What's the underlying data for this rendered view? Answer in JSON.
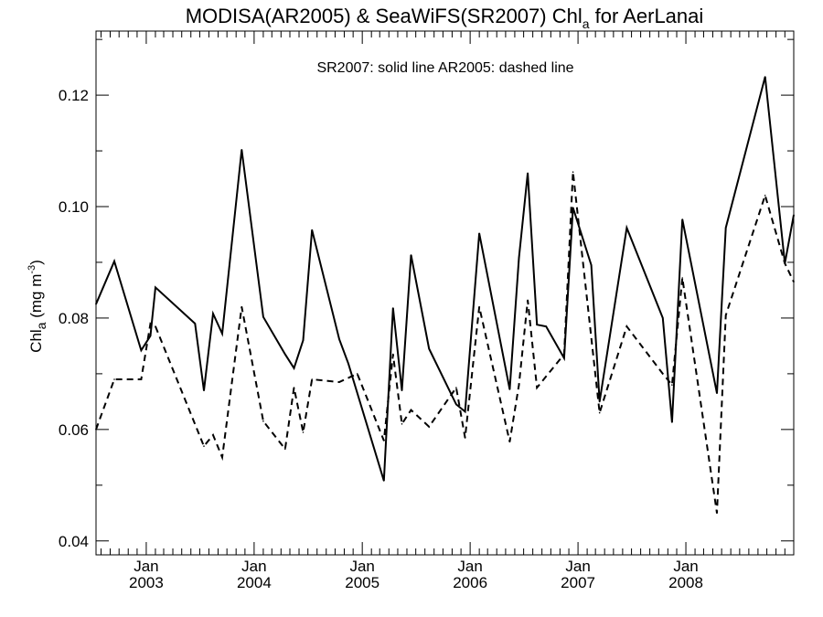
{
  "chart_data": {
    "type": "line",
    "title": {
      "main": "MODISA(AR2005) & SeaWiFS(SR2007)  Chl",
      "sub": "a",
      "rest": " for AerLanai"
    },
    "annotation": "SR2007: solid line   AR2005: dashed line",
    "ylabel": {
      "main": "Chl",
      "sub": "a",
      "unit_pre": " (mg m",
      "unit_sup": "-3",
      "unit_post": ")"
    },
    "ylim": [
      0.0375,
      0.1315
    ],
    "xlim": [
      "2002-07-15",
      "2008-12-31"
    ],
    "y_ticks": [
      "0.04",
      "0.06",
      "0.08",
      "0.10",
      "0.12"
    ],
    "x_ticks": [
      {
        "month": "Jan",
        "year": "2003",
        "date": "2003-01-01"
      },
      {
        "month": "Jan",
        "year": "2004",
        "date": "2004-01-01"
      },
      {
        "month": "Jan",
        "year": "2005",
        "date": "2005-01-01"
      },
      {
        "month": "Jan",
        "year": "2006",
        "date": "2006-01-01"
      },
      {
        "month": "Jan",
        "year": "2007",
        "date": "2007-01-01"
      },
      {
        "month": "Jan",
        "year": "2008",
        "date": "2008-01-01"
      }
    ],
    "grid": false,
    "series": [
      {
        "style": "solid",
        "points": [
          [
            "2002-07-15",
            0.0825
          ],
          [
            "2002-09-15",
            0.0902
          ],
          [
            "2002-12-15",
            0.0742
          ],
          [
            "2003-01-15",
            0.0768
          ],
          [
            "2003-02-01",
            0.0855
          ],
          [
            "2003-06-15",
            0.079
          ],
          [
            "2003-07-15",
            0.067
          ],
          [
            "2003-08-15",
            0.0808
          ],
          [
            "2003-09-15",
            0.0772
          ],
          [
            "2003-11-20",
            0.1102
          ],
          [
            "2004-02-01",
            0.0802
          ],
          [
            "2004-04-15",
            0.0735
          ],
          [
            "2004-05-15",
            0.071
          ],
          [
            "2004-06-15",
            0.076
          ],
          [
            "2004-07-15",
            0.0958
          ],
          [
            "2004-10-15",
            0.0762
          ],
          [
            "2004-11-15",
            0.0718
          ],
          [
            "2005-03-15",
            0.0508
          ],
          [
            "2005-04-15",
            0.0818
          ],
          [
            "2005-05-15",
            0.067
          ],
          [
            "2005-06-15",
            0.0913
          ],
          [
            "2005-08-15",
            0.0745
          ],
          [
            "2005-11-15",
            0.0645
          ],
          [
            "2005-12-15",
            0.0632
          ],
          [
            "2006-02-01",
            0.0952
          ],
          [
            "2006-05-15",
            0.0672
          ],
          [
            "2006-06-15",
            0.0908
          ],
          [
            "2006-07-15",
            0.106
          ],
          [
            "2006-08-15",
            0.0788
          ],
          [
            "2006-09-15",
            0.0785
          ],
          [
            "2006-11-15",
            0.0728
          ],
          [
            "2006-12-15",
            0.0998
          ],
          [
            "2007-02-15",
            0.0895
          ],
          [
            "2007-03-15",
            0.065
          ],
          [
            "2007-06-15",
            0.0962
          ],
          [
            "2007-10-15",
            0.08
          ],
          [
            "2007-11-15",
            0.0613
          ],
          [
            "2007-12-20",
            0.0977
          ],
          [
            "2008-04-15",
            0.0665
          ],
          [
            "2008-05-15",
            0.0962
          ],
          [
            "2008-09-25",
            0.1233
          ],
          [
            "2008-12-01",
            0.0898
          ],
          [
            "2008-12-31",
            0.0985
          ]
        ]
      },
      {
        "style": "dashed",
        "points": [
          [
            "2002-07-15",
            0.06
          ],
          [
            "2002-09-15",
            0.069
          ],
          [
            "2002-12-15",
            0.069
          ],
          [
            "2003-01-15",
            0.079
          ],
          [
            "2003-02-01",
            0.0785
          ],
          [
            "2003-07-15",
            0.057
          ],
          [
            "2003-08-15",
            0.059
          ],
          [
            "2003-09-15",
            0.055
          ],
          [
            "2003-11-20",
            0.082
          ],
          [
            "2004-02-01",
            0.0615
          ],
          [
            "2004-04-15",
            0.0565
          ],
          [
            "2004-05-15",
            0.0675
          ],
          [
            "2004-06-15",
            0.0595
          ],
          [
            "2004-07-15",
            0.069
          ],
          [
            "2004-10-15",
            0.0685
          ],
          [
            "2004-12-15",
            0.07
          ],
          [
            "2005-03-15",
            0.058
          ],
          [
            "2005-04-15",
            0.0735
          ],
          [
            "2005-05-15",
            0.061
          ],
          [
            "2005-06-15",
            0.0635
          ],
          [
            "2005-08-15",
            0.0605
          ],
          [
            "2005-11-15",
            0.0675
          ],
          [
            "2005-12-15",
            0.0585
          ],
          [
            "2006-02-01",
            0.082
          ],
          [
            "2006-05-15",
            0.0578
          ],
          [
            "2006-06-15",
            0.068
          ],
          [
            "2006-07-15",
            0.0832
          ],
          [
            "2006-08-15",
            0.0675
          ],
          [
            "2006-11-15",
            0.0735
          ],
          [
            "2006-12-15",
            0.1062
          ],
          [
            "2007-03-15",
            0.063
          ],
          [
            "2007-06-15",
            0.0785
          ],
          [
            "2007-10-15",
            0.07
          ],
          [
            "2007-11-15",
            0.068
          ],
          [
            "2007-12-20",
            0.0872
          ],
          [
            "2008-04-15",
            0.045
          ],
          [
            "2008-05-15",
            0.0805
          ],
          [
            "2008-09-25",
            0.102
          ],
          [
            "2008-12-01",
            0.0898
          ],
          [
            "2008-12-31",
            0.0865
          ]
        ]
      }
    ]
  }
}
